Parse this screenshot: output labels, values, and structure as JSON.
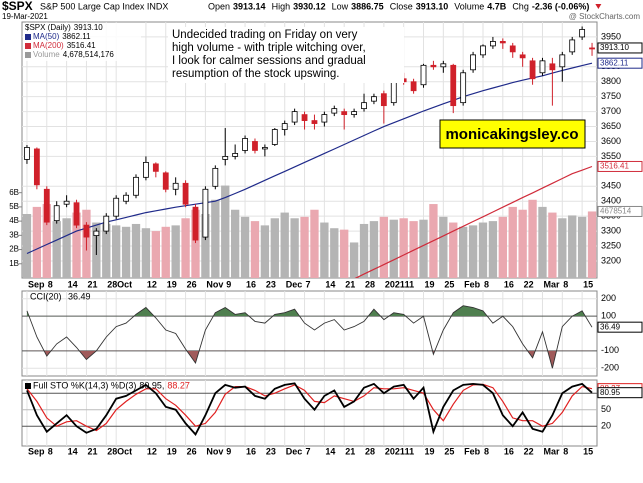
{
  "chart_data": {
    "type": "candlestick",
    "symbol": "$SPX",
    "index_name": "S&P 500 Large Cap Index INDX",
    "date": "19-Mar-2021",
    "source": "@ StockCharts.com",
    "header": [
      {
        "label": "Open",
        "value": "3913.14"
      },
      {
        "label": "High",
        "value": "3930.12"
      },
      {
        "label": "Low",
        "value": "3886.75"
      },
      {
        "label": "Close",
        "value": "3913.10"
      },
      {
        "label": "Volume",
        "value": "4.7B"
      },
      {
        "label": "Chg",
        "value": "-2.36 (-0.06%)"
      }
    ],
    "annotation": [
      "Undecided trading on Friday on very",
      "high volume - with triple witching over,",
      "I look for calmer sessions and gradual",
      "resumption of the stock upswing."
    ],
    "watermark": "monicakingsley.co",
    "categories": [
      "Sep",
      null,
      "8",
      null,
      "14",
      null,
      "21",
      null,
      "28",
      "Oct",
      null,
      null,
      "12",
      null,
      "19",
      null,
      "26",
      null,
      "Nov",
      null,
      "9",
      null,
      "16",
      null,
      "23",
      null,
      "Dec",
      null,
      "7",
      null,
      "14",
      null,
      "21",
      null,
      "28",
      null,
      "2021",
      null,
      "11",
      null,
      "19",
      null,
      "25",
      null,
      "Feb",
      null,
      "8",
      null,
      "16",
      null,
      "22",
      null,
      "Mar",
      null,
      "8",
      null,
      "15",
      null
    ],
    "price": {
      "name": "$SPX (Daily)",
      "last_label": "3913.10",
      "up_color": "#000000",
      "down_color": "#d0202a",
      "candles": [
        [
          3540,
          3588,
          3525,
          3580
        ],
        [
          3575,
          3580,
          3440,
          3455
        ],
        [
          3440,
          3450,
          3320,
          3330
        ],
        [
          3335,
          3400,
          3325,
          3385
        ],
        [
          3390,
          3420,
          3380,
          3400
        ],
        [
          3395,
          3405,
          3310,
          3320
        ],
        [
          3320,
          3330,
          3235,
          3280
        ],
        [
          3285,
          3310,
          3220,
          3300
        ],
        [
          3300,
          3360,
          3290,
          3350
        ],
        [
          3350,
          3420,
          3340,
          3410
        ],
        [
          3400,
          3430,
          3390,
          3420
        ],
        [
          3420,
          3490,
          3410,
          3480
        ],
        [
          3480,
          3550,
          3470,
          3530
        ],
        [
          3525,
          3530,
          3480,
          3500
        ],
        [
          3495,
          3500,
          3430,
          3440
        ],
        [
          3440,
          3480,
          3420,
          3460
        ],
        [
          3460,
          3470,
          3380,
          3390
        ],
        [
          3380,
          3390,
          3260,
          3270
        ],
        [
          3280,
          3450,
          3270,
          3440
        ],
        [
          3450,
          3520,
          3440,
          3510
        ],
        [
          3540,
          3645,
          3520,
          3550
        ],
        [
          3550,
          3590,
          3540,
          3560
        ],
        [
          3570,
          3620,
          3560,
          3610
        ],
        [
          3600,
          3610,
          3560,
          3570
        ],
        [
          3575,
          3590,
          3550,
          3580
        ],
        [
          3590,
          3645,
          3585,
          3640
        ],
        [
          3640,
          3670,
          3620,
          3660
        ],
        [
          3665,
          3710,
          3655,
          3700
        ],
        [
          3690,
          3700,
          3640,
          3670
        ],
        [
          3670,
          3690,
          3640,
          3660
        ],
        [
          3665,
          3700,
          3650,
          3690
        ],
        [
          3695,
          3720,
          3685,
          3710
        ],
        [
          3700,
          3710,
          3640,
          3690
        ],
        [
          3690,
          3710,
          3680,
          3700
        ],
        [
          3710,
          3760,
          3700,
          3730
        ],
        [
          3735,
          3760,
          3725,
          3750
        ],
        [
          3760,
          3770,
          3660,
          3720
        ],
        [
          3730,
          3820,
          3720,
          3810
        ],
        [
          3810,
          3830,
          3790,
          3800
        ],
        [
          3800,
          3810,
          3760,
          3770
        ],
        [
          3790,
          3860,
          3780,
          3855
        ],
        [
          3855,
          3870,
          3840,
          3850
        ],
        [
          3850,
          3870,
          3830,
          3860
        ],
        [
          3855,
          3860,
          3695,
          3720
        ],
        [
          3730,
          3840,
          3720,
          3830
        ],
        [
          3840,
          3900,
          3830,
          3890
        ],
        [
          3890,
          3925,
          3880,
          3920
        ],
        [
          3920,
          3950,
          3910,
          3935
        ],
        [
          3935,
          3945,
          3910,
          3930
        ],
        [
          3920,
          3930,
          3880,
          3900
        ],
        [
          3890,
          3900,
          3850,
          3880
        ],
        [
          3870,
          3880,
          3790,
          3810
        ],
        [
          3830,
          3880,
          3820,
          3870
        ],
        [
          3860,
          3880,
          3720,
          3840
        ],
        [
          3850,
          3900,
          3800,
          3890
        ],
        [
          3900,
          3950,
          3890,
          3940
        ],
        [
          3950,
          3985,
          3940,
          3975
        ],
        [
          3913.14,
          3930.12,
          3886.75,
          3913.1
        ]
      ]
    },
    "ylim": [
      3143,
      4000
    ],
    "yticks": [
      3200,
      3250,
      3300,
      3350,
      3400,
      3450,
      3550,
      3600,
      3650,
      3700,
      3750,
      3800,
      3850,
      3950
    ],
    "series": [
      {
        "name": "MA(50)",
        "last_label": "3862.11",
        "color": "#1f2a8a",
        "values": [
          3225,
          3240,
          3255,
          3270,
          3285,
          3300,
          3310,
          3320,
          3330,
          3338,
          3346,
          3354,
          3362,
          3368,
          3374,
          3380,
          3385,
          3390,
          3395,
          3400,
          3412,
          3426,
          3440,
          3455,
          3470,
          3485,
          3500,
          3515,
          3530,
          3545,
          3560,
          3575,
          3590,
          3605,
          3620,
          3635,
          3650,
          3663,
          3676,
          3689,
          3702,
          3714,
          3726,
          3738,
          3750,
          3760,
          3770,
          3779,
          3788,
          3797,
          3805,
          3813,
          3820,
          3829,
          3838,
          3846,
          3854,
          3862.11
        ]
      },
      {
        "name": "MA(200)",
        "last_label": "3516.41",
        "color": "#d02b3a",
        "values": [
          null,
          null,
          null,
          null,
          null,
          null,
          null,
          null,
          null,
          null,
          null,
          null,
          null,
          null,
          null,
          null,
          null,
          null,
          null,
          null,
          null,
          null,
          null,
          null,
          null,
          null,
          null,
          null,
          null,
          null,
          null,
          null,
          null,
          3140,
          3156,
          3172,
          3188,
          3204,
          3220,
          3236,
          3252,
          3268,
          3284,
          3300,
          3316,
          3332,
          3348,
          3364,
          3380,
          3396,
          3412,
          3428,
          3444,
          3460,
          3476,
          3492,
          3504,
          3516.41
        ]
      }
    ],
    "volume": {
      "name": "Volume",
      "last_label": "4,678,514,176",
      "axis_label": "4678514",
      "up_color": "#b4b4b4",
      "down_color": "#eaa8b0",
      "values": [
        4.5,
        5.0,
        5.2,
        4.0,
        4.2,
        4.6,
        4.8,
        3.9,
        3.8,
        3.7,
        3.6,
        3.8,
        3.5,
        3.3,
        3.6,
        3.7,
        4.2,
        4.8,
        4.5,
        5.5,
        6.5,
        4.8,
        4.3,
        4.0,
        3.7,
        4.2,
        4.6,
        4.2,
        4.3,
        4.8,
        3.9,
        3.5,
        3.4,
        2.5,
        3.8,
        4.0,
        4.3,
        4.1,
        4.2,
        4.0,
        4.1,
        5.2,
        4.3,
        3.9,
        3.6,
        3.7,
        3.9,
        4.0,
        4.3,
        5.0,
        4.8,
        5.5,
        5.0,
        4.6,
        4.2,
        4.4,
        4.3,
        4.678514176
      ]
    },
    "y2lim": [
      0,
      18
    ],
    "y2ticks": [
      {
        "value": 1,
        "label": "1B"
      },
      {
        "value": 2,
        "label": "2B"
      },
      {
        "value": 3,
        "label": "3B"
      },
      {
        "value": 4,
        "label": "4B"
      },
      {
        "value": 5,
        "label": "5B"
      },
      {
        "value": 6,
        "label": "6B"
      }
    ],
    "cci": {
      "name": "CCI(20)",
      "last_label": "36.49",
      "color": "#333333",
      "pos_fill": "#4f7f4f",
      "neg_fill": "#a05a5a",
      "ylim": [
        -245,
        245
      ],
      "yticks": [
        200,
        100,
        -100,
        -200
      ],
      "values": [
        130,
        -20,
        -130,
        -60,
        -20,
        -80,
        -150,
        -100,
        -20,
        40,
        60,
        110,
        150,
        90,
        20,
        0,
        -90,
        -170,
        20,
        120,
        150,
        110,
        120,
        70,
        60,
        110,
        120,
        140,
        60,
        20,
        60,
        80,
        20,
        40,
        70,
        140,
        80,
        120,
        110,
        60,
        100,
        -120,
        20,
        120,
        160,
        150,
        130,
        60,
        100,
        40,
        -60,
        -140,
        10,
        -200,
        40,
        100,
        130,
        36.49
      ]
    },
    "sto": {
      "name": "Full STO %K(14,3) %D(3)",
      "separator": ",",
      "ylim": [
        -16,
        104
      ],
      "yticks": [
        80,
        50,
        20
      ],
      "k": {
        "color": "#000000",
        "last_label": "80.95",
        "values": [
          85,
          40,
          10,
          25,
          40,
          20,
          8,
          15,
          40,
          70,
          75,
          85,
          95,
          80,
          55,
          50,
          25,
          5,
          40,
          80,
          95,
          90,
          92,
          75,
          70,
          88,
          95,
          98,
          70,
          50,
          75,
          85,
          55,
          65,
          90,
          97,
          80,
          92,
          95,
          70,
          90,
          10,
          55,
          85,
          95,
          97,
          95,
          80,
          40,
          20,
          45,
          15,
          10,
          40,
          80,
          92,
          97,
          80.95
        ]
      },
      "d": {
        "color": "#e02020",
        "last_label": "88.27",
        "values": [
          88,
          65,
          35,
          20,
          28,
          30,
          20,
          12,
          25,
          50,
          65,
          78,
          88,
          88,
          70,
          58,
          40,
          20,
          25,
          45,
          78,
          92,
          92,
          85,
          75,
          80,
          88,
          95,
          85,
          65,
          63,
          75,
          70,
          65,
          75,
          90,
          88,
          88,
          90,
          85,
          80,
          50,
          30,
          60,
          85,
          95,
          96,
          90,
          65,
          35,
          30,
          30,
          20,
          25,
          45,
          75,
          92,
          88.27
        ]
      }
    }
  }
}
